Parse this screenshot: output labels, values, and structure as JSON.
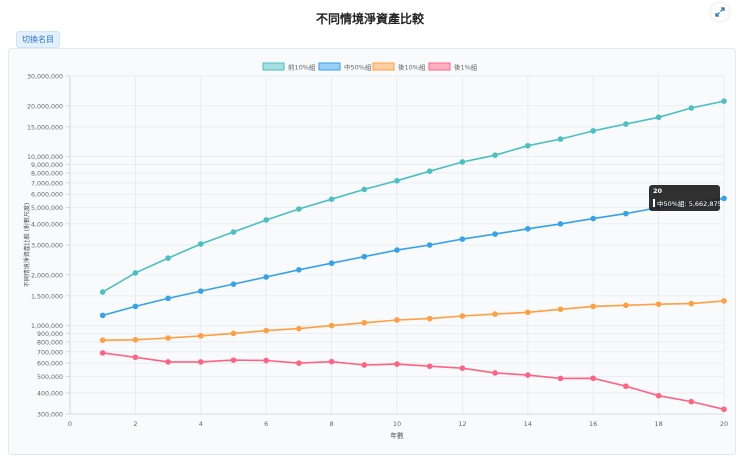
{
  "header": {
    "title": "不同情境淨資產比較",
    "switch_button": "切換名目",
    "expand_icon": "expand-icon"
  },
  "chart_data": {
    "type": "line",
    "title": "不同情境淨資產比較",
    "xlabel": "年數",
    "ylabel": "不同情境淨資產比較 (對數尺度)",
    "yscale": "log",
    "xlim": [
      0,
      20
    ],
    "ylim": [
      300000,
      30000000
    ],
    "x_ticks": [
      "0",
      "2",
      "4",
      "6",
      "8",
      "10",
      "12",
      "14",
      "16",
      "18",
      "20"
    ],
    "y_ticks": [
      {
        "v": 30000000,
        "label": "30,000,000"
      },
      {
        "v": 20000000,
        "label": "20,000,000"
      },
      {
        "v": 15000000,
        "label": "15,000,000"
      },
      {
        "v": 10000000,
        "label": "10,000,000"
      },
      {
        "v": 9000000,
        "label": "9,000,000"
      },
      {
        "v": 8000000,
        "label": "8,000,000"
      },
      {
        "v": 7000000,
        "label": "7,000,000"
      },
      {
        "v": 6000000,
        "label": "6,000,000"
      },
      {
        "v": 5000000,
        "label": "5,000,000"
      },
      {
        "v": 4000000,
        "label": "4,000,000"
      },
      {
        "v": 3000000,
        "label": "3,000,000"
      },
      {
        "v": 2000000,
        "label": "2,000,000"
      },
      {
        "v": 1500000,
        "label": "1,500,000"
      },
      {
        "v": 1000000,
        "label": "1,000,000"
      },
      {
        "v": 900000,
        "label": "900,000"
      },
      {
        "v": 800000,
        "label": "800,000"
      },
      {
        "v": 700000,
        "label": "700,000"
      },
      {
        "v": 600000,
        "label": "600,000"
      },
      {
        "v": 500000,
        "label": "500,000"
      },
      {
        "v": 400000,
        "label": "400,000"
      },
      {
        "v": 300000,
        "label": "300,000"
      }
    ],
    "grid": true,
    "legend_position": "top",
    "x": [
      1,
      2,
      3,
      4,
      5,
      6,
      7,
      8,
      9,
      10,
      11,
      12,
      13,
      14,
      15,
      16,
      17,
      18,
      19,
      20
    ],
    "series": [
      {
        "name": "前10%組",
        "color": "#4bc0c0",
        "fill": "#a5dfdf",
        "values": [
          1580000,
          2050000,
          2510000,
          3040000,
          3580000,
          4220000,
          4900000,
          5600000,
          6400000,
          7200000,
          8200000,
          9300000,
          10200000,
          11600000,
          12700000,
          14200000,
          15600000,
          17100000,
          19400000,
          21300000
        ]
      },
      {
        "name": "中50%組",
        "color": "#36a2eb",
        "fill": "#9ad0f5",
        "values": [
          1150000,
          1300000,
          1450000,
          1600000,
          1760000,
          1940000,
          2140000,
          2340000,
          2560000,
          2800000,
          3000000,
          3250000,
          3480000,
          3740000,
          4000000,
          4300000,
          4600000,
          5000000,
          5300000,
          5662875
        ]
      },
      {
        "name": "後10%組",
        "color": "#ff9f40",
        "fill": "#ffcf9f",
        "values": [
          820000,
          825000,
          845000,
          870000,
          900000,
          935000,
          960000,
          1000000,
          1040000,
          1080000,
          1100000,
          1140000,
          1170000,
          1200000,
          1250000,
          1300000,
          1320000,
          1340000,
          1350000,
          1400000
        ]
      },
      {
        "name": "後1%組",
        "color": "#ff6384",
        "fill": "#ffb1c1",
        "values": [
          690000,
          650000,
          610000,
          610000,
          625000,
          622000,
          600000,
          612000,
          585000,
          592000,
          575000,
          560000,
          525000,
          510000,
          487000,
          488000,
          438000,
          385000,
          355000,
          320000
        ]
      }
    ]
  },
  "tooltip": {
    "title": "20",
    "label": "中50%組: 5,662,875"
  }
}
